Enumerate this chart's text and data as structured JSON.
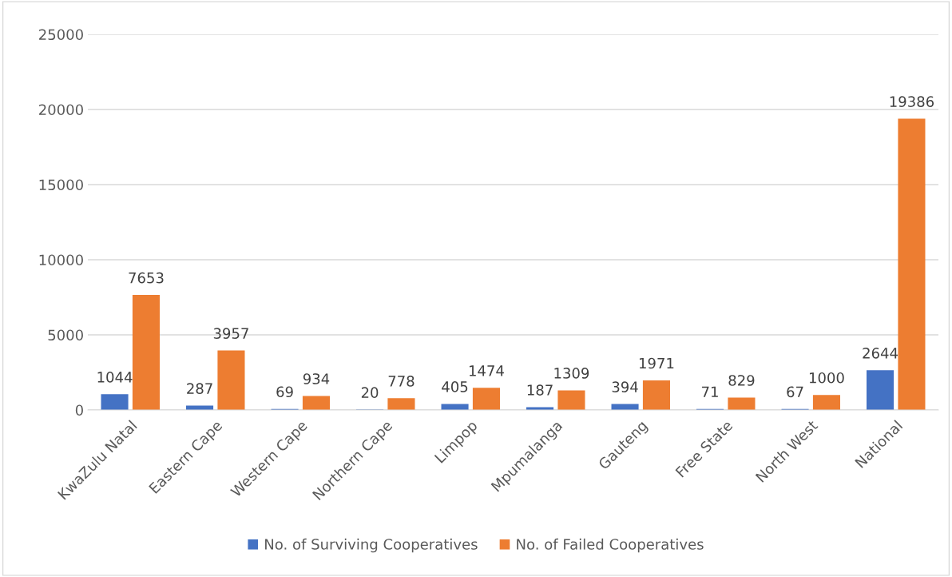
{
  "chart_data": {
    "type": "bar",
    "categories": [
      "KwaZulu Natal",
      "Eastern Cape",
      "Western Cape",
      "Northern Cape",
      "Limpop",
      "Mpumalanga",
      "Gauteng",
      "Free State",
      "North West",
      "National"
    ],
    "series": [
      {
        "name": "No. of Surviving Cooperatives",
        "color": "#4472c4",
        "values": [
          1044,
          287,
          69,
          20,
          405,
          187,
          394,
          71,
          67,
          2644
        ]
      },
      {
        "name": "No. of Failed Cooperatives",
        "color": "#ed7d31",
        "values": [
          7653,
          3957,
          934,
          778,
          1474,
          1309,
          1971,
          829,
          1000,
          19386
        ]
      }
    ],
    "ylim": [
      0,
      25000
    ],
    "yticks": [
      0,
      5000,
      10000,
      15000,
      20000,
      25000
    ],
    "grid": "y",
    "legend": "bottom",
    "data_labels": true
  }
}
